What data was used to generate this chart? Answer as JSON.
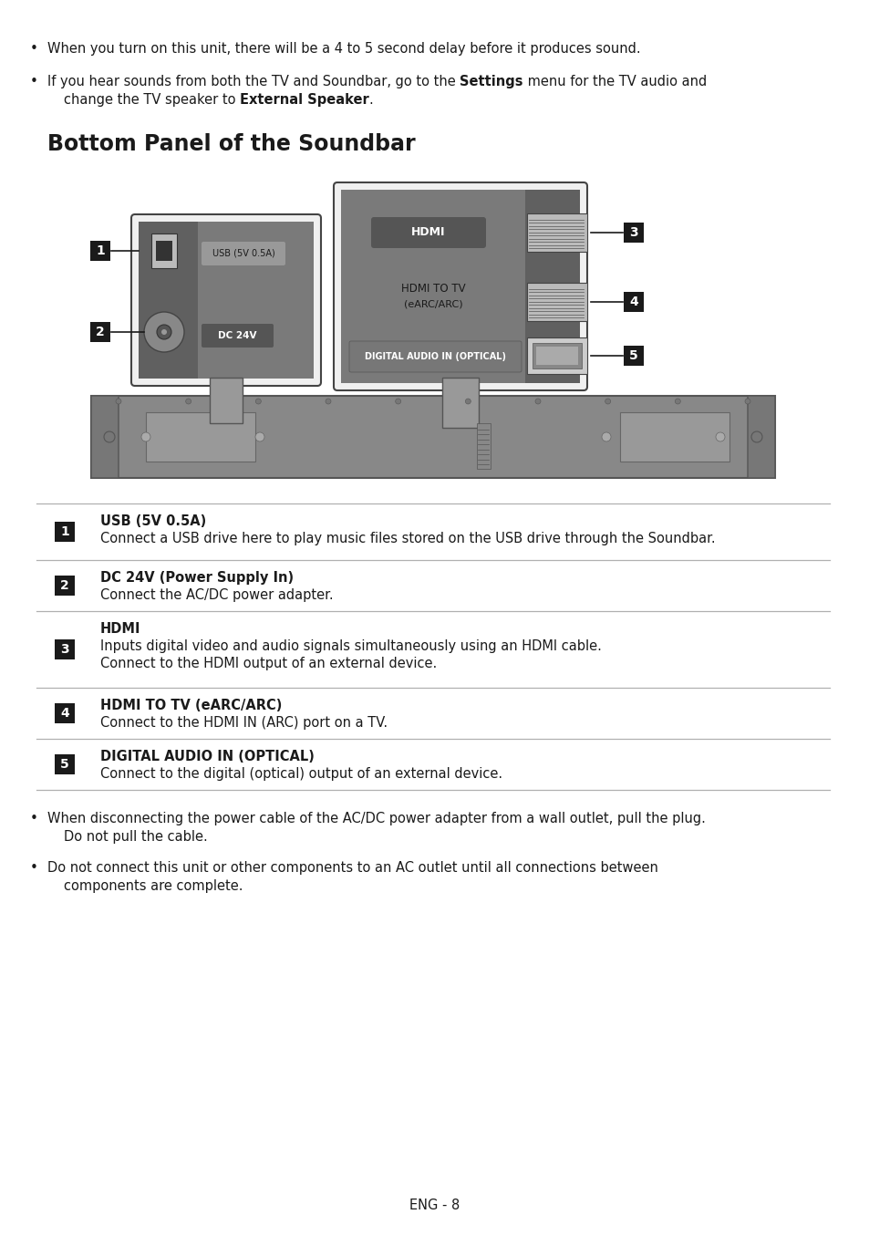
{
  "page_bg": "#ffffff",
  "bullet1": "When you turn on this unit, there will be a 4 to 5 second delay before it produces sound.",
  "bullet2_p1": "If you hear sounds from both the TV and Soundbar, go to the ",
  "bullet2_bold1": "Settings",
  "bullet2_p2": " menu for the TV audio and",
  "bullet2_p3": "change the TV speaker to ",
  "bullet2_bold2": "External Speaker",
  "bullet2_p4": ".",
  "section_title": "Bottom Panel of the Soundbar",
  "table_items": [
    {
      "num": "1",
      "title": "USB (5V 0.5A)",
      "desc": "Connect a USB drive here to play music files stored on the USB drive through the Soundbar."
    },
    {
      "num": "2",
      "title": "DC 24V (Power Supply In)",
      "desc": "Connect the AC/DC power adapter."
    },
    {
      "num": "3",
      "title": "HDMI",
      "desc": "Inputs digital video and audio signals simultaneously using an HDMI cable.\nConnect to the HDMI output of an external device."
    },
    {
      "num": "4",
      "title": "HDMI TO TV (eARC/ARC)",
      "desc": "Connect to the HDMI IN (ARC) port on a TV."
    },
    {
      "num": "5",
      "title": "DIGITAL AUDIO IN (OPTICAL)",
      "desc": "Connect to the digital (optical) output of an external device."
    }
  ],
  "bottom_bullet1_l1": "When disconnecting the power cable of the AC/DC power adapter from a wall outlet, pull the plug.",
  "bottom_bullet1_l2": "Do not pull the cable.",
  "bottom_bullet2_l1": "Do not connect this unit or other components to an AC outlet until all connections between",
  "bottom_bullet2_l2": "components are complete.",
  "footer": "ENG - 8",
  "diag_bg": "#8a8a8a",
  "diag_panel_bg": "#7a7a7a",
  "diag_dark_strip": "#606060",
  "diag_label_bg": "#555555",
  "diag_connector_bg": "#aaaaaa",
  "diag_outline": "#444444",
  "soundbar_bg": "#888888",
  "box_fill": "#1a1a1a",
  "box_text": "#ffffff",
  "line_color": "#b0b0b0",
  "text_color": "#1a1a1a"
}
